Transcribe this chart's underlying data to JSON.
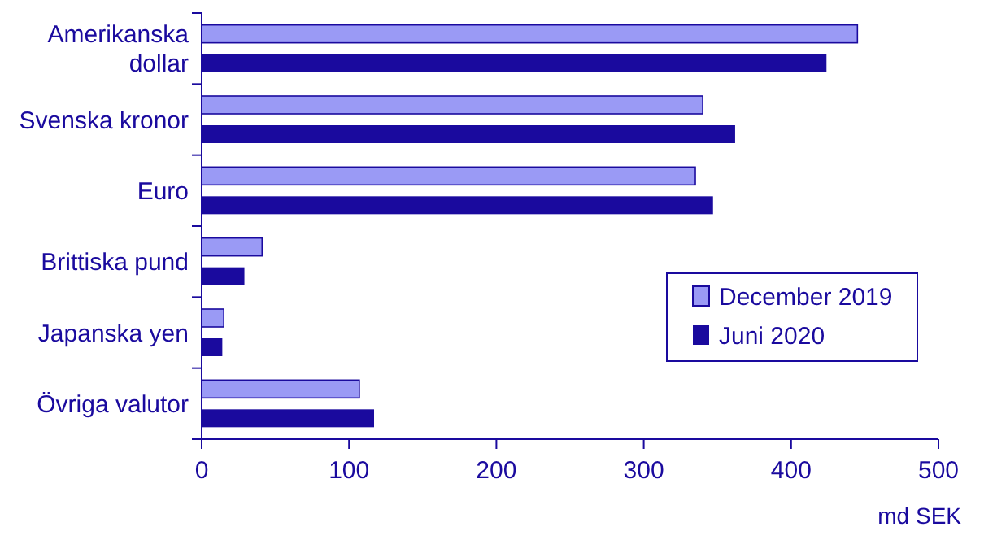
{
  "chart_data": {
    "type": "bar",
    "orientation": "horizontal",
    "xlabel": "md SEK",
    "categories": [
      "Amerikanska dollar",
      "Svenska kronor",
      "Euro",
      "Brittiska pund",
      "Japanska yen",
      "Övriga valutor"
    ],
    "series": [
      {
        "name": "December 2019",
        "color": "#9a9af5",
        "values": [
          445,
          340,
          335,
          41,
          15,
          107
        ]
      },
      {
        "name": "Juni 2020",
        "color": "#1a0a9e",
        "values": [
          424,
          362,
          347,
          29,
          14,
          117
        ]
      }
    ],
    "xlim": [
      0,
      500
    ],
    "xticks": [
      0,
      100,
      200,
      300,
      400,
      500
    ],
    "grid": false,
    "legend": "right"
  }
}
